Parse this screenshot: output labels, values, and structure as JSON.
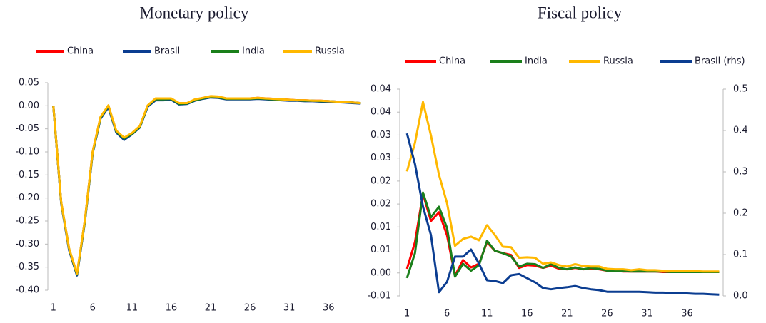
{
  "chart_data": [
    {
      "type": "line",
      "title": "Monetary policy",
      "x": [
        1,
        2,
        3,
        4,
        5,
        6,
        7,
        8,
        9,
        10,
        11,
        12,
        13,
        14,
        15,
        16,
        17,
        18,
        19,
        20,
        21,
        22,
        23,
        24,
        25,
        26,
        27,
        28,
        29,
        30,
        31,
        32,
        33,
        34,
        35,
        36,
        37,
        38,
        39,
        40
      ],
      "xlim": [
        0.3,
        40.7
      ],
      "xticks": [
        1,
        6,
        11,
        16,
        21,
        26,
        31,
        36
      ],
      "ylim": [
        -0.4,
        0.05
      ],
      "yticks": [
        {
          "value": -0.4,
          "label": "-0.40"
        },
        -0.35,
        {
          "value": -0.3,
          "label": "-0.30"
        },
        -0.25,
        {
          "value": -0.2,
          "label": "-0.20"
        },
        -0.15,
        {
          "value": -0.1,
          "label": "-0.10"
        },
        -0.05,
        {
          "value": 0,
          "label": "0.00"
        },
        0.05
      ],
      "series": [
        {
          "name": "China",
          "color": "#ff0000",
          "values": [
            0,
            -0.21,
            -0.31,
            -0.365,
            -0.25,
            -0.1,
            -0.025,
            0,
            -0.055,
            -0.07,
            -0.06,
            -0.045,
            0,
            0.015,
            0.015,
            0.015,
            0.005,
            0.005,
            0.013,
            0.017,
            0.02,
            0.019,
            0.016,
            0.016,
            0.016,
            0.016,
            0.017,
            0.016,
            0.015,
            0.014,
            0.013,
            0.012,
            0.012,
            0.011,
            0.011,
            0.01,
            0.009,
            0.008,
            0.007,
            0.006
          ]
        },
        {
          "name": "Brasil",
          "color": "#0b3d91",
          "values": [
            0,
            -0.212,
            -0.313,
            -0.368,
            -0.253,
            -0.103,
            -0.028,
            -0.003,
            -0.058,
            -0.074,
            -0.062,
            -0.047,
            -0.002,
            0.012,
            0.012,
            0.013,
            0.003,
            0.004,
            0.011,
            0.015,
            0.018,
            0.017,
            0.014,
            0.014,
            0.014,
            0.014,
            0.015,
            0.014,
            0.013,
            0.012,
            0.011,
            0.011,
            0.01,
            0.01,
            0.009,
            0.009,
            0.008,
            0.007,
            0.006,
            0.005
          ]
        },
        {
          "name": "India",
          "color": "#1a7f1a",
          "values": [
            0,
            -0.21,
            -0.31,
            -0.366,
            -0.251,
            -0.101,
            -0.026,
            0,
            -0.056,
            -0.071,
            -0.061,
            -0.046,
            0,
            0.014,
            0.014,
            0.015,
            0.004,
            0.005,
            0.012,
            0.016,
            0.019,
            0.018,
            0.015,
            0.015,
            0.015,
            0.015,
            0.016,
            0.015,
            0.014,
            0.013,
            0.012,
            0.012,
            0.011,
            0.011,
            0.01,
            0.01,
            0.009,
            0.008,
            0.007,
            0.006
          ]
        },
        {
          "name": "Russia",
          "color": "#ffb800",
          "values": [
            0,
            -0.209,
            -0.309,
            -0.364,
            -0.249,
            -0.099,
            -0.024,
            0.001,
            -0.054,
            -0.069,
            -0.059,
            -0.044,
            0.001,
            0.016,
            0.016,
            0.016,
            0.006,
            0.006,
            0.014,
            0.017,
            0.021,
            0.02,
            0.016,
            0.016,
            0.016,
            0.016,
            0.017,
            0.016,
            0.015,
            0.014,
            0.013,
            0.012,
            0.012,
            0.011,
            0.011,
            0.01,
            0.009,
            0.008,
            0.007,
            0.006
          ]
        }
      ]
    },
    {
      "type": "line",
      "title": "Fiscal policy",
      "x": [
        1,
        2,
        3,
        4,
        5,
        6,
        7,
        8,
        9,
        10,
        11,
        12,
        13,
        14,
        15,
        16,
        17,
        18,
        19,
        20,
        21,
        22,
        23,
        24,
        25,
        26,
        27,
        28,
        29,
        30,
        31,
        32,
        33,
        34,
        35,
        36,
        37,
        38,
        39,
        40
      ],
      "xlim": [
        0.1,
        40.5
      ],
      "xticks": [
        1,
        6,
        11,
        16,
        21,
        26,
        31,
        36
      ],
      "ylim": [
        -0.005,
        0.04
      ],
      "yticks": [
        {
          "value": -0.005,
          "label": "-0.01"
        },
        {
          "value": 0,
          "label": "0.00"
        },
        {
          "value": 0.005,
          "label": "0.01"
        },
        0.01,
        {
          "value": 0.015,
          "label": "0.02"
        },
        0.02,
        {
          "value": 0.025,
          "label": "0.03"
        },
        0.03,
        {
          "value": 0.035,
          "label": "0.04"
        },
        0.04
      ],
      "y2lim": [
        0,
        0.5
      ],
      "y2ticks": [
        {
          "value": 0,
          "label": "0.0"
        },
        0.1,
        0.2,
        0.3,
        0.4,
        0.5
      ],
      "series": [
        {
          "name": "China",
          "color": "#ff0000",
          "values": [
            0.0009,
            0.0067,
            0.0172,
            0.0113,
            0.0132,
            0.0082,
            -0.0006,
            0.0028,
            0.0012,
            0.002,
            0.0067,
            0.0048,
            0.0043,
            0.0039,
            0.0011,
            0.0017,
            0.0016,
            0.0011,
            0.0016,
            0.0009,
            0.0008,
            0.0011,
            0.0008,
            0.0009,
            0.0008,
            0.0005,
            0.0005,
            0.0003,
            0.0003,
            0.0003,
            0.0003,
            0.0003,
            0.0002,
            0.0002,
            0.0002,
            0.0002,
            0.0002,
            0.0002,
            0.0002,
            0.0002
          ]
        },
        {
          "name": "India",
          "color": "#1a7f1a",
          "values": [
            -0.0011,
            0.0043,
            0.0175,
            0.0121,
            0.0144,
            0.0098,
            -0.0008,
            0.002,
            0.0005,
            0.0017,
            0.007,
            0.0048,
            0.0043,
            0.0036,
            0.0014,
            0.002,
            0.0019,
            0.0011,
            0.0019,
            0.0011,
            0.0008,
            0.0012,
            0.0008,
            0.0011,
            0.0009,
            0.0005,
            0.0005,
            0.0004,
            0.0003,
            0.0003,
            0.0003,
            0.0003,
            0.0003,
            0.0002,
            0.0002,
            0.0002,
            0.0002,
            0.0002,
            0.0002,
            0.0002
          ]
        },
        {
          "name": "Russia",
          "color": "#ffb800",
          "values": [
            0.0221,
            0.0283,
            0.0372,
            0.0299,
            0.0214,
            0.0152,
            0.0059,
            0.0074,
            0.0079,
            0.0071,
            0.0104,
            0.0082,
            0.0057,
            0.0056,
            0.0033,
            0.0034,
            0.0033,
            0.002,
            0.0023,
            0.0017,
            0.0014,
            0.0019,
            0.0015,
            0.0014,
            0.0014,
            0.0009,
            0.0008,
            0.0008,
            0.0006,
            0.0008,
            0.0006,
            0.0006,
            0.0005,
            0.0005,
            0.0004,
            0.0004,
            0.0004,
            0.0003,
            0.0003,
            0.0003
          ]
        },
        {
          "name": "Brasil (rhs)",
          "color": "#0b3d91",
          "axis": "y2",
          "values": [
            0.393,
            0.319,
            0.216,
            0.147,
            0.009,
            0.034,
            0.095,
            0.095,
            0.112,
            0.078,
            0.038,
            0.036,
            0.031,
            0.05,
            0.053,
            0.043,
            0.033,
            0.019,
            0.016,
            0.019,
            0.021,
            0.024,
            0.019,
            0.016,
            0.014,
            0.01,
            0.01,
            0.01,
            0.01,
            0.01,
            0.009,
            0.008,
            0.008,
            0.007,
            0.006,
            0.006,
            0.005,
            0.005,
            0.004,
            0.003
          ]
        }
      ]
    }
  ]
}
